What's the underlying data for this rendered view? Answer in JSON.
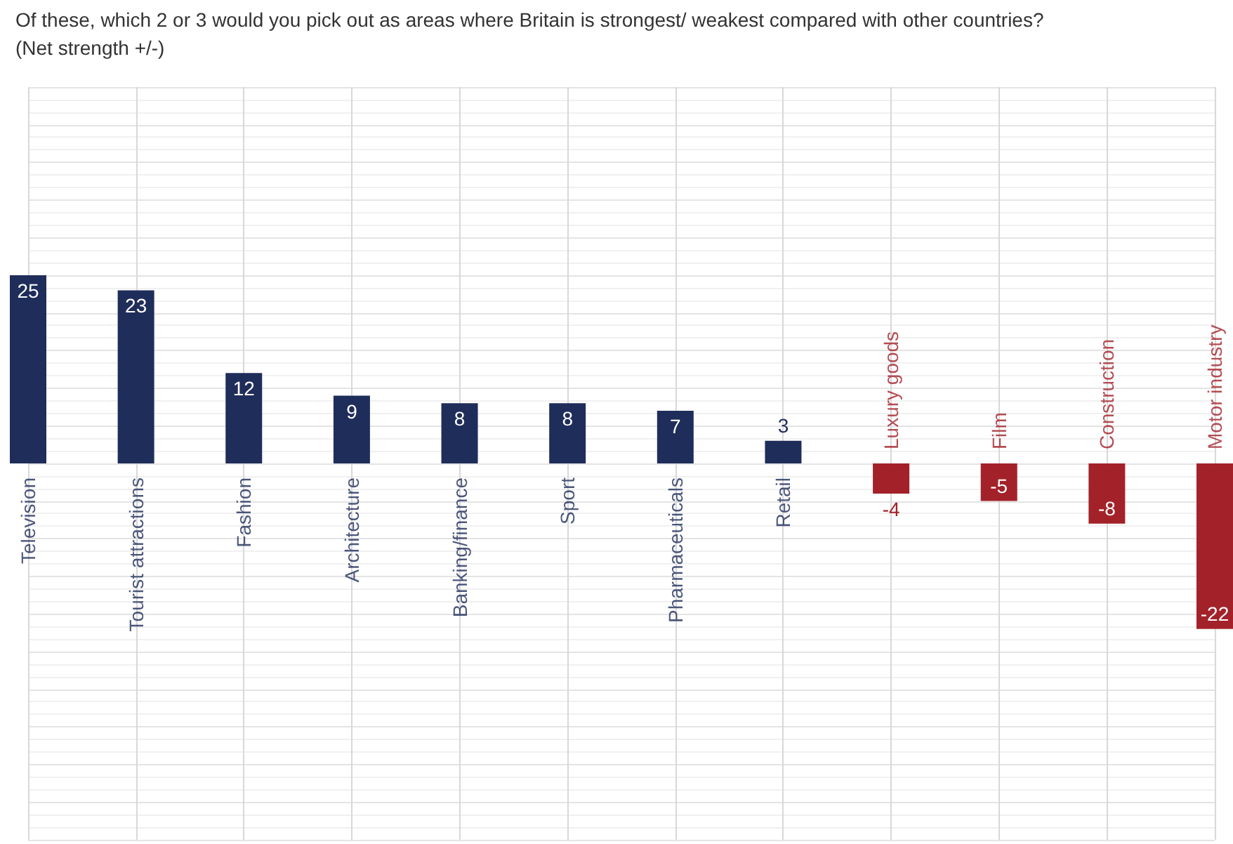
{
  "chart_data": {
    "type": "bar",
    "title": "Of these, which 2 or 3 would you pick out as areas where Britain is strongest/ weakest compared with other countries?",
    "subtitle": "(Net strength +/-)",
    "categories": [
      "Television",
      "Tourist attractions",
      "Fashion",
      "Architecture",
      "Banking/finance",
      "Sport",
      "Pharmaceuticals",
      "Retail",
      "Luxury goods",
      "Film",
      "Construction",
      "Motor industry"
    ],
    "values": [
      25,
      23,
      12,
      9,
      8,
      8,
      7,
      3,
      -4,
      -5,
      -8,
      -22
    ],
    "colors": [
      "#1f2d5a",
      "#1f2d5a",
      "#1f2d5a",
      "#1f2d5a",
      "#1f2d5a",
      "#1f2d5a",
      "#1f2d5a",
      "#1f2d5a",
      "#a3222a",
      "#a3222a",
      "#a3222a",
      "#a3222a"
    ],
    "ylim": [
      -50,
      50
    ],
    "tick_labels": false,
    "grid": true,
    "data_labels": true
  }
}
